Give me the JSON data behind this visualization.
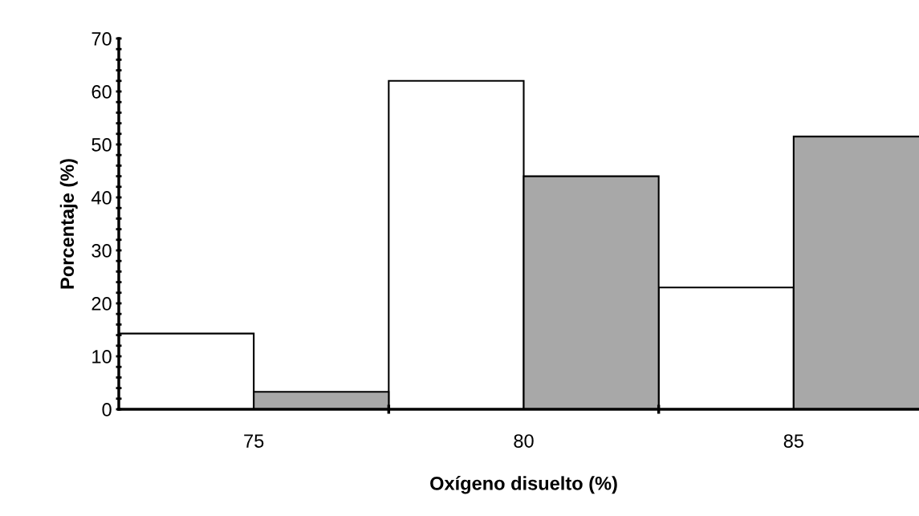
{
  "chart_data": {
    "type": "bar",
    "xlabel": "Oxígeno disuelto (%)",
    "ylabel": "Porcentaje (%)",
    "categories": [
      "75",
      "80",
      "85"
    ],
    "series": [
      {
        "color": "#ffffff",
        "values": [
          14.3,
          62,
          23
        ]
      },
      {
        "color": "#a8a8a8",
        "values": [
          3.3,
          44,
          51.5
        ]
      }
    ],
    "ylim": [
      0,
      70
    ],
    "yticks": [
      0,
      {
        "value": 2,
        "label": null
      },
      {
        "value": 4,
        "label": null
      },
      {
        "value": 6,
        "label": null
      },
      {
        "value": 8,
        "label": null
      },
      10,
      {
        "value": 12,
        "label": null
      },
      {
        "value": 14,
        "label": null
      },
      {
        "value": 16,
        "label": null
      },
      {
        "value": 18,
        "label": null
      },
      20,
      {
        "value": 22,
        "label": null
      },
      {
        "value": 24,
        "label": null
      },
      {
        "value": 26,
        "label": null
      },
      {
        "value": 28,
        "label": null
      },
      30,
      {
        "value": 32,
        "label": null
      },
      {
        "value": 34,
        "label": null
      },
      {
        "value": 36,
        "label": null
      },
      {
        "value": 38,
        "label": null
      },
      40,
      {
        "value": 42,
        "label": null
      },
      {
        "value": 44,
        "label": null
      },
      {
        "value": 46,
        "label": null
      },
      {
        "value": 48,
        "label": null
      },
      50,
      {
        "value": 52,
        "label": null
      },
      {
        "value": 54,
        "label": null
      },
      {
        "value": 56,
        "label": null
      },
      {
        "value": 58,
        "label": null
      },
      60,
      {
        "value": 62,
        "label": null
      },
      {
        "value": 64,
        "label": null
      },
      {
        "value": 66,
        "label": null
      },
      {
        "value": 68,
        "label": null
      },
      70
    ]
  }
}
